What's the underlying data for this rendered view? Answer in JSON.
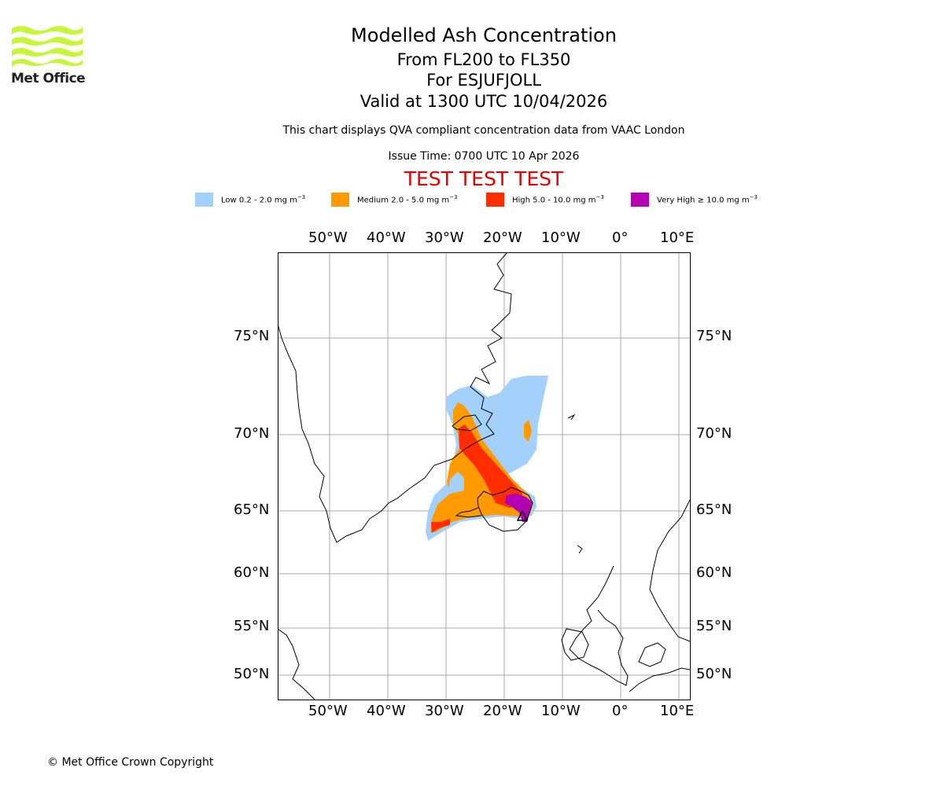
{
  "brand": {
    "logo_text": "Met Office",
    "logo_color": "#c6f53a"
  },
  "header": {
    "title": "Modelled Ash Concentration",
    "levels": "From FL200 to FL350",
    "volcano": "For ESJUFJOLL",
    "valid": "Valid at 1300 UTC 10/04/2026",
    "note": "This chart displays QVA compliant concentration data from VAAC London",
    "issue": "Issue Time: 0700 UTC 10 Apr 2026",
    "test_banner": "TEST TEST TEST",
    "test_color": "#e00000"
  },
  "legend": [
    {
      "name": "Low",
      "range": "0.2 - 2.0",
      "color": "#a3d1fb"
    },
    {
      "name": "Medium",
      "range": "2.0 - 5.0",
      "color": "#ff9b00"
    },
    {
      "name": "High",
      "range": "5.0 - 10.0",
      "color": "#ff2d00"
    },
    {
      "name": "Very High",
      "range": "≥  10.0",
      "color": "#b300b3"
    }
  ],
  "legend_unit": "mg m",
  "legend_exp": "−3",
  "map": {
    "lon_labels": [
      "50°W",
      "40°W",
      "30°W",
      "20°W",
      "10°W",
      "0°",
      "10°E"
    ],
    "lat_labels": [
      "75°N",
      "70°N",
      "65°N",
      "60°N",
      "55°N",
      "50°N"
    ],
    "grid_color": "#aaaaaa"
  },
  "footer": {
    "copyright": "© Met Office Crown Copyright"
  }
}
